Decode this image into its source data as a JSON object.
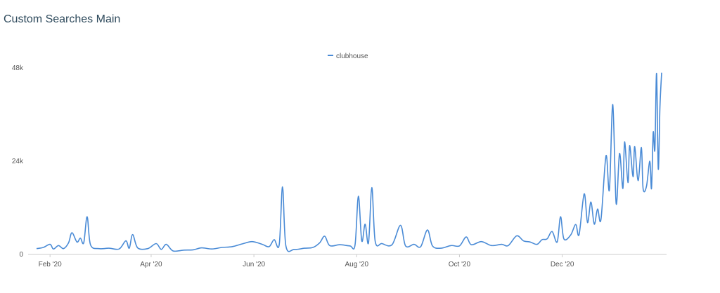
{
  "header": {
    "title": "Custom Searches Main"
  },
  "chart_data": {
    "type": "line",
    "title": "Custom Searches Main",
    "xlabel": "",
    "ylabel": "",
    "legend": {
      "position": "top-center",
      "entries": [
        "clubhouse"
      ]
    },
    "grid": false,
    "x_range": [
      "2020-01-24",
      "2021-01-29"
    ],
    "ylim": [
      0,
      48000
    ],
    "y_ticks": [
      {
        "value": 0,
        "label": "0"
      },
      {
        "value": 24000,
        "label": "24k"
      },
      {
        "value": 48000,
        "label": "48k"
      }
    ],
    "x_ticks": [
      {
        "value": "2020-02-01",
        "label": "Feb '20"
      },
      {
        "value": "2020-04-01",
        "label": "Apr '20"
      },
      {
        "value": "2020-06-01",
        "label": "Jun '20"
      },
      {
        "value": "2020-08-01",
        "label": "Aug '20"
      },
      {
        "value": "2020-10-01",
        "label": "Oct '20"
      },
      {
        "value": "2020-12-01",
        "label": "Dec '20"
      }
    ],
    "series": [
      {
        "name": "clubhouse",
        "color": "#4a8bd6",
        "points": [
          [
            "2020-01-24",
            1500
          ],
          [
            "2020-01-28",
            1800
          ],
          [
            "2020-02-01",
            2600
          ],
          [
            "2020-02-03",
            1400
          ],
          [
            "2020-02-06",
            2300
          ],
          [
            "2020-02-09",
            1500
          ],
          [
            "2020-02-12",
            3000
          ],
          [
            "2020-02-14",
            5600
          ],
          [
            "2020-02-17",
            3200
          ],
          [
            "2020-02-19",
            4200
          ],
          [
            "2020-02-21",
            3000
          ],
          [
            "2020-02-23",
            9700
          ],
          [
            "2020-02-25",
            2500
          ],
          [
            "2020-03-01",
            1500
          ],
          [
            "2020-03-07",
            1600
          ],
          [
            "2020-03-13",
            1400
          ],
          [
            "2020-03-17",
            3500
          ],
          [
            "2020-03-19",
            1600
          ],
          [
            "2020-03-21",
            5100
          ],
          [
            "2020-03-24",
            1700
          ],
          [
            "2020-03-30",
            1500
          ],
          [
            "2020-04-04",
            2800
          ],
          [
            "2020-04-07",
            1300
          ],
          [
            "2020-04-10",
            2600
          ],
          [
            "2020-04-14",
            900
          ],
          [
            "2020-04-20",
            1100
          ],
          [
            "2020-04-26",
            1200
          ],
          [
            "2020-05-01",
            1700
          ],
          [
            "2020-05-07",
            1400
          ],
          [
            "2020-05-13",
            1800
          ],
          [
            "2020-05-19",
            2000
          ],
          [
            "2020-05-25",
            2700
          ],
          [
            "2020-05-31",
            3300
          ],
          [
            "2020-06-06",
            2600
          ],
          [
            "2020-06-10",
            2000
          ],
          [
            "2020-06-13",
            3800
          ],
          [
            "2020-06-16",
            2500
          ],
          [
            "2020-06-18",
            17400
          ],
          [
            "2020-06-20",
            2200
          ],
          [
            "2020-06-25",
            1300
          ],
          [
            "2020-07-01",
            1600
          ],
          [
            "2020-07-06",
            1800
          ],
          [
            "2020-07-10",
            3000
          ],
          [
            "2020-07-13",
            4700
          ],
          [
            "2020-07-16",
            2300
          ],
          [
            "2020-07-22",
            2500
          ],
          [
            "2020-07-28",
            2200
          ],
          [
            "2020-07-31",
            2400
          ],
          [
            "2020-08-02",
            15000
          ],
          [
            "2020-08-04",
            3500
          ],
          [
            "2020-08-06",
            7800
          ],
          [
            "2020-08-08",
            3000
          ],
          [
            "2020-08-10",
            17200
          ],
          [
            "2020-08-12",
            3400
          ],
          [
            "2020-08-16",
            2800
          ],
          [
            "2020-08-22",
            2500
          ],
          [
            "2020-08-27",
            7500
          ],
          [
            "2020-08-30",
            2200
          ],
          [
            "2020-09-04",
            2600
          ],
          [
            "2020-09-08",
            2000
          ],
          [
            "2020-09-12",
            6300
          ],
          [
            "2020-09-15",
            2200
          ],
          [
            "2020-09-20",
            1600
          ],
          [
            "2020-09-26",
            2300
          ],
          [
            "2020-10-01",
            2200
          ],
          [
            "2020-10-05",
            4500
          ],
          [
            "2020-10-08",
            2500
          ],
          [
            "2020-10-14",
            3300
          ],
          [
            "2020-10-20",
            2300
          ],
          [
            "2020-10-26",
            2600
          ],
          [
            "2020-10-30",
            2300
          ],
          [
            "2020-11-04",
            4800
          ],
          [
            "2020-11-08",
            3500
          ],
          [
            "2020-11-12",
            3200
          ],
          [
            "2020-11-16",
            2600
          ],
          [
            "2020-11-19",
            3800
          ],
          [
            "2020-11-22",
            4000
          ],
          [
            "2020-11-25",
            5900
          ],
          [
            "2020-11-28",
            3200
          ],
          [
            "2020-11-30",
            9700
          ],
          [
            "2020-12-02",
            4000
          ],
          [
            "2020-12-06",
            5000
          ],
          [
            "2020-12-09",
            7700
          ],
          [
            "2020-12-11",
            5100
          ],
          [
            "2020-12-14",
            15600
          ],
          [
            "2020-12-16",
            8200
          ],
          [
            "2020-12-18",
            13500
          ],
          [
            "2020-12-20",
            7800
          ],
          [
            "2020-12-22",
            11700
          ],
          [
            "2020-12-24",
            9000
          ],
          [
            "2020-12-27",
            25400
          ],
          [
            "2020-12-29",
            16600
          ],
          [
            "2020-12-31",
            38600
          ],
          [
            "2021-01-02",
            13100
          ],
          [
            "2021-01-04",
            26000
          ],
          [
            "2021-01-06",
            17000
          ],
          [
            "2021-01-07",
            29000
          ],
          [
            "2021-01-09",
            18500
          ],
          [
            "2021-01-10",
            28000
          ],
          [
            "2021-01-12",
            20000
          ],
          [
            "2021-01-13",
            27800
          ],
          [
            "2021-01-15",
            19000
          ],
          [
            "2021-01-17",
            27500
          ],
          [
            "2021-01-18",
            17000
          ],
          [
            "2021-01-20",
            17500
          ],
          [
            "2021-01-22",
            24000
          ],
          [
            "2021-01-23",
            17000
          ],
          [
            "2021-01-24",
            31400
          ],
          [
            "2021-01-25",
            27000
          ],
          [
            "2021-01-26",
            46600
          ],
          [
            "2021-01-27",
            22000
          ],
          [
            "2021-01-28",
            38000
          ],
          [
            "2021-01-29",
            46800
          ]
        ]
      }
    ]
  }
}
